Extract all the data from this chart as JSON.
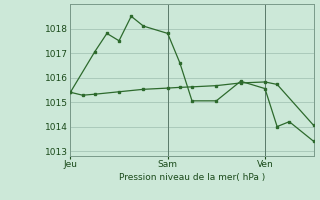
{
  "title": "Pression niveau de la mer( hPa )",
  "bg_color": "#cce8d8",
  "grid_color": "#aacabb",
  "line_color": "#2d6a2d",
  "ylim": [
    1012.8,
    1019.0
  ],
  "yticks": [
    1013,
    1014,
    1015,
    1016,
    1017,
    1018
  ],
  "xlim": [
    0,
    20
  ],
  "xtick_labels": [
    "Jeu",
    "Sam",
    "Ven"
  ],
  "xtick_positions": [
    0,
    8,
    16
  ],
  "vline_positions": [
    0,
    8,
    16
  ],
  "series1_x": [
    0,
    2,
    3,
    4,
    5,
    6,
    8,
    9,
    10,
    12,
    14,
    16,
    17,
    18,
    20
  ],
  "series1_y": [
    1015.4,
    1017.05,
    1017.8,
    1017.5,
    1018.5,
    1018.1,
    1017.8,
    1016.6,
    1015.05,
    1015.05,
    1015.85,
    1015.55,
    1014.0,
    1014.2,
    1013.4
  ],
  "series2_x": [
    0,
    1,
    2,
    4,
    6,
    8,
    9,
    10,
    12,
    14,
    16,
    17,
    20
  ],
  "series2_y": [
    1015.4,
    1015.28,
    1015.32,
    1015.42,
    1015.52,
    1015.57,
    1015.6,
    1015.62,
    1015.67,
    1015.78,
    1015.82,
    1015.72,
    1014.05
  ]
}
